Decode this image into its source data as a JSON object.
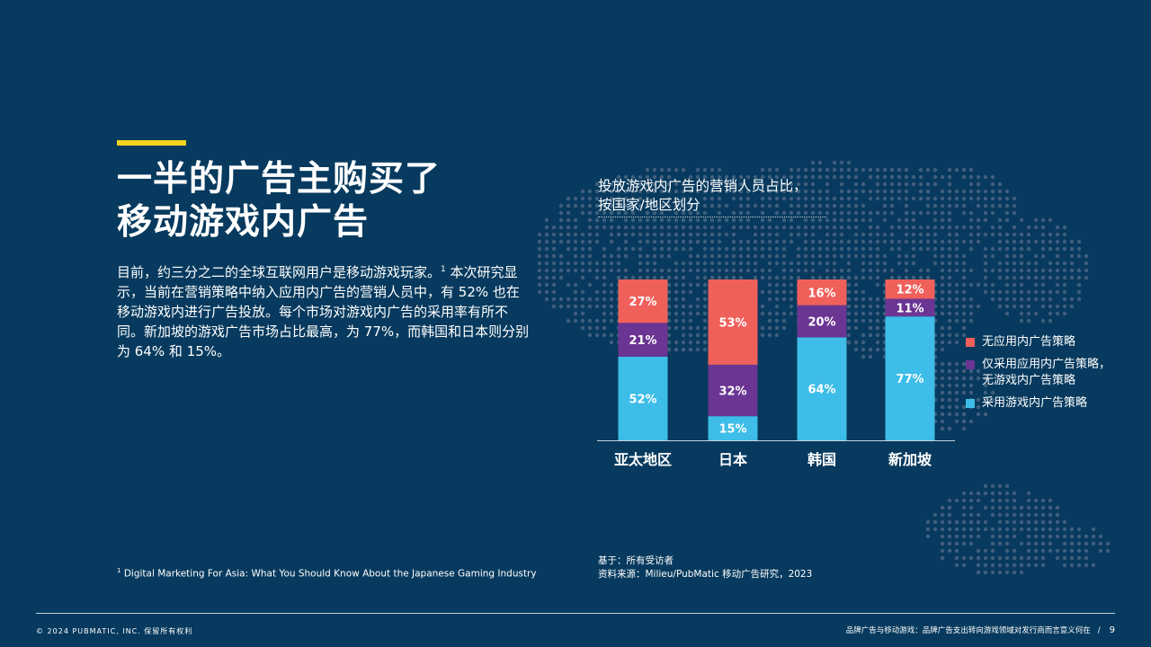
{
  "headline": {
    "line1": "一半的广告主购买了",
    "line2": "移动游戏内广告"
  },
  "body": {
    "part1": "目前，约三分之二的全球互联网用户是移动游戏玩家。",
    "footnote_ref": "1",
    "part2": " 本次研究显示，当前在营销策略中纳入应用内广告的营销人员中，有 52% 也在移动游戏内进行广告投放。每个市场对游戏内广告的采用率有所不同。新加坡的游戏广告市场占比最高，为 77%，而韩国和日本则分别为 64% 和 15%。"
  },
  "footnote": {
    "marker": "1",
    "text": "Digital Marketing For Asia: What You Should Know About the Japanese Gaming Industry"
  },
  "chart_data": {
    "type": "bar",
    "stacked": true,
    "title_line1": "投放游戏内广告的营销人员占比，",
    "title_line2": "按国家/地区划分",
    "categories": [
      "亚太地区",
      "日本",
      "韩国",
      "新加坡"
    ],
    "series": [
      {
        "name": "采用游戏内广告策略",
        "color": "#3dbde8",
        "values": [
          52,
          15,
          64,
          77
        ]
      },
      {
        "name": "仅采用应用内广告策略，\n无游戏内广告策略",
        "color": "#6b3593",
        "values": [
          21,
          32,
          20,
          11
        ]
      },
      {
        "name": "无应用内广告策略",
        "color": "#f0605b",
        "values": [
          27,
          53,
          16,
          12
        ]
      }
    ],
    "value_suffix": "%",
    "ylim": [
      0,
      100
    ],
    "legend_position": "right"
  },
  "source": {
    "line1": "基于：所有受访者",
    "line2": "资料来源：Milieu/PubMatic 移动广告研究，2023"
  },
  "footer": {
    "copyright": "© 2024 PUBMATIC, INC. 保留所有权利",
    "doc_title": "品牌广告与移动游戏：品牌广告支出转向游戏领域对发行商而言意义何在",
    "separator": "/",
    "page": "9"
  },
  "colors": {
    "background": "#073a5e",
    "accent": "#f5d21d",
    "map_dots": "#3f5f7c"
  }
}
